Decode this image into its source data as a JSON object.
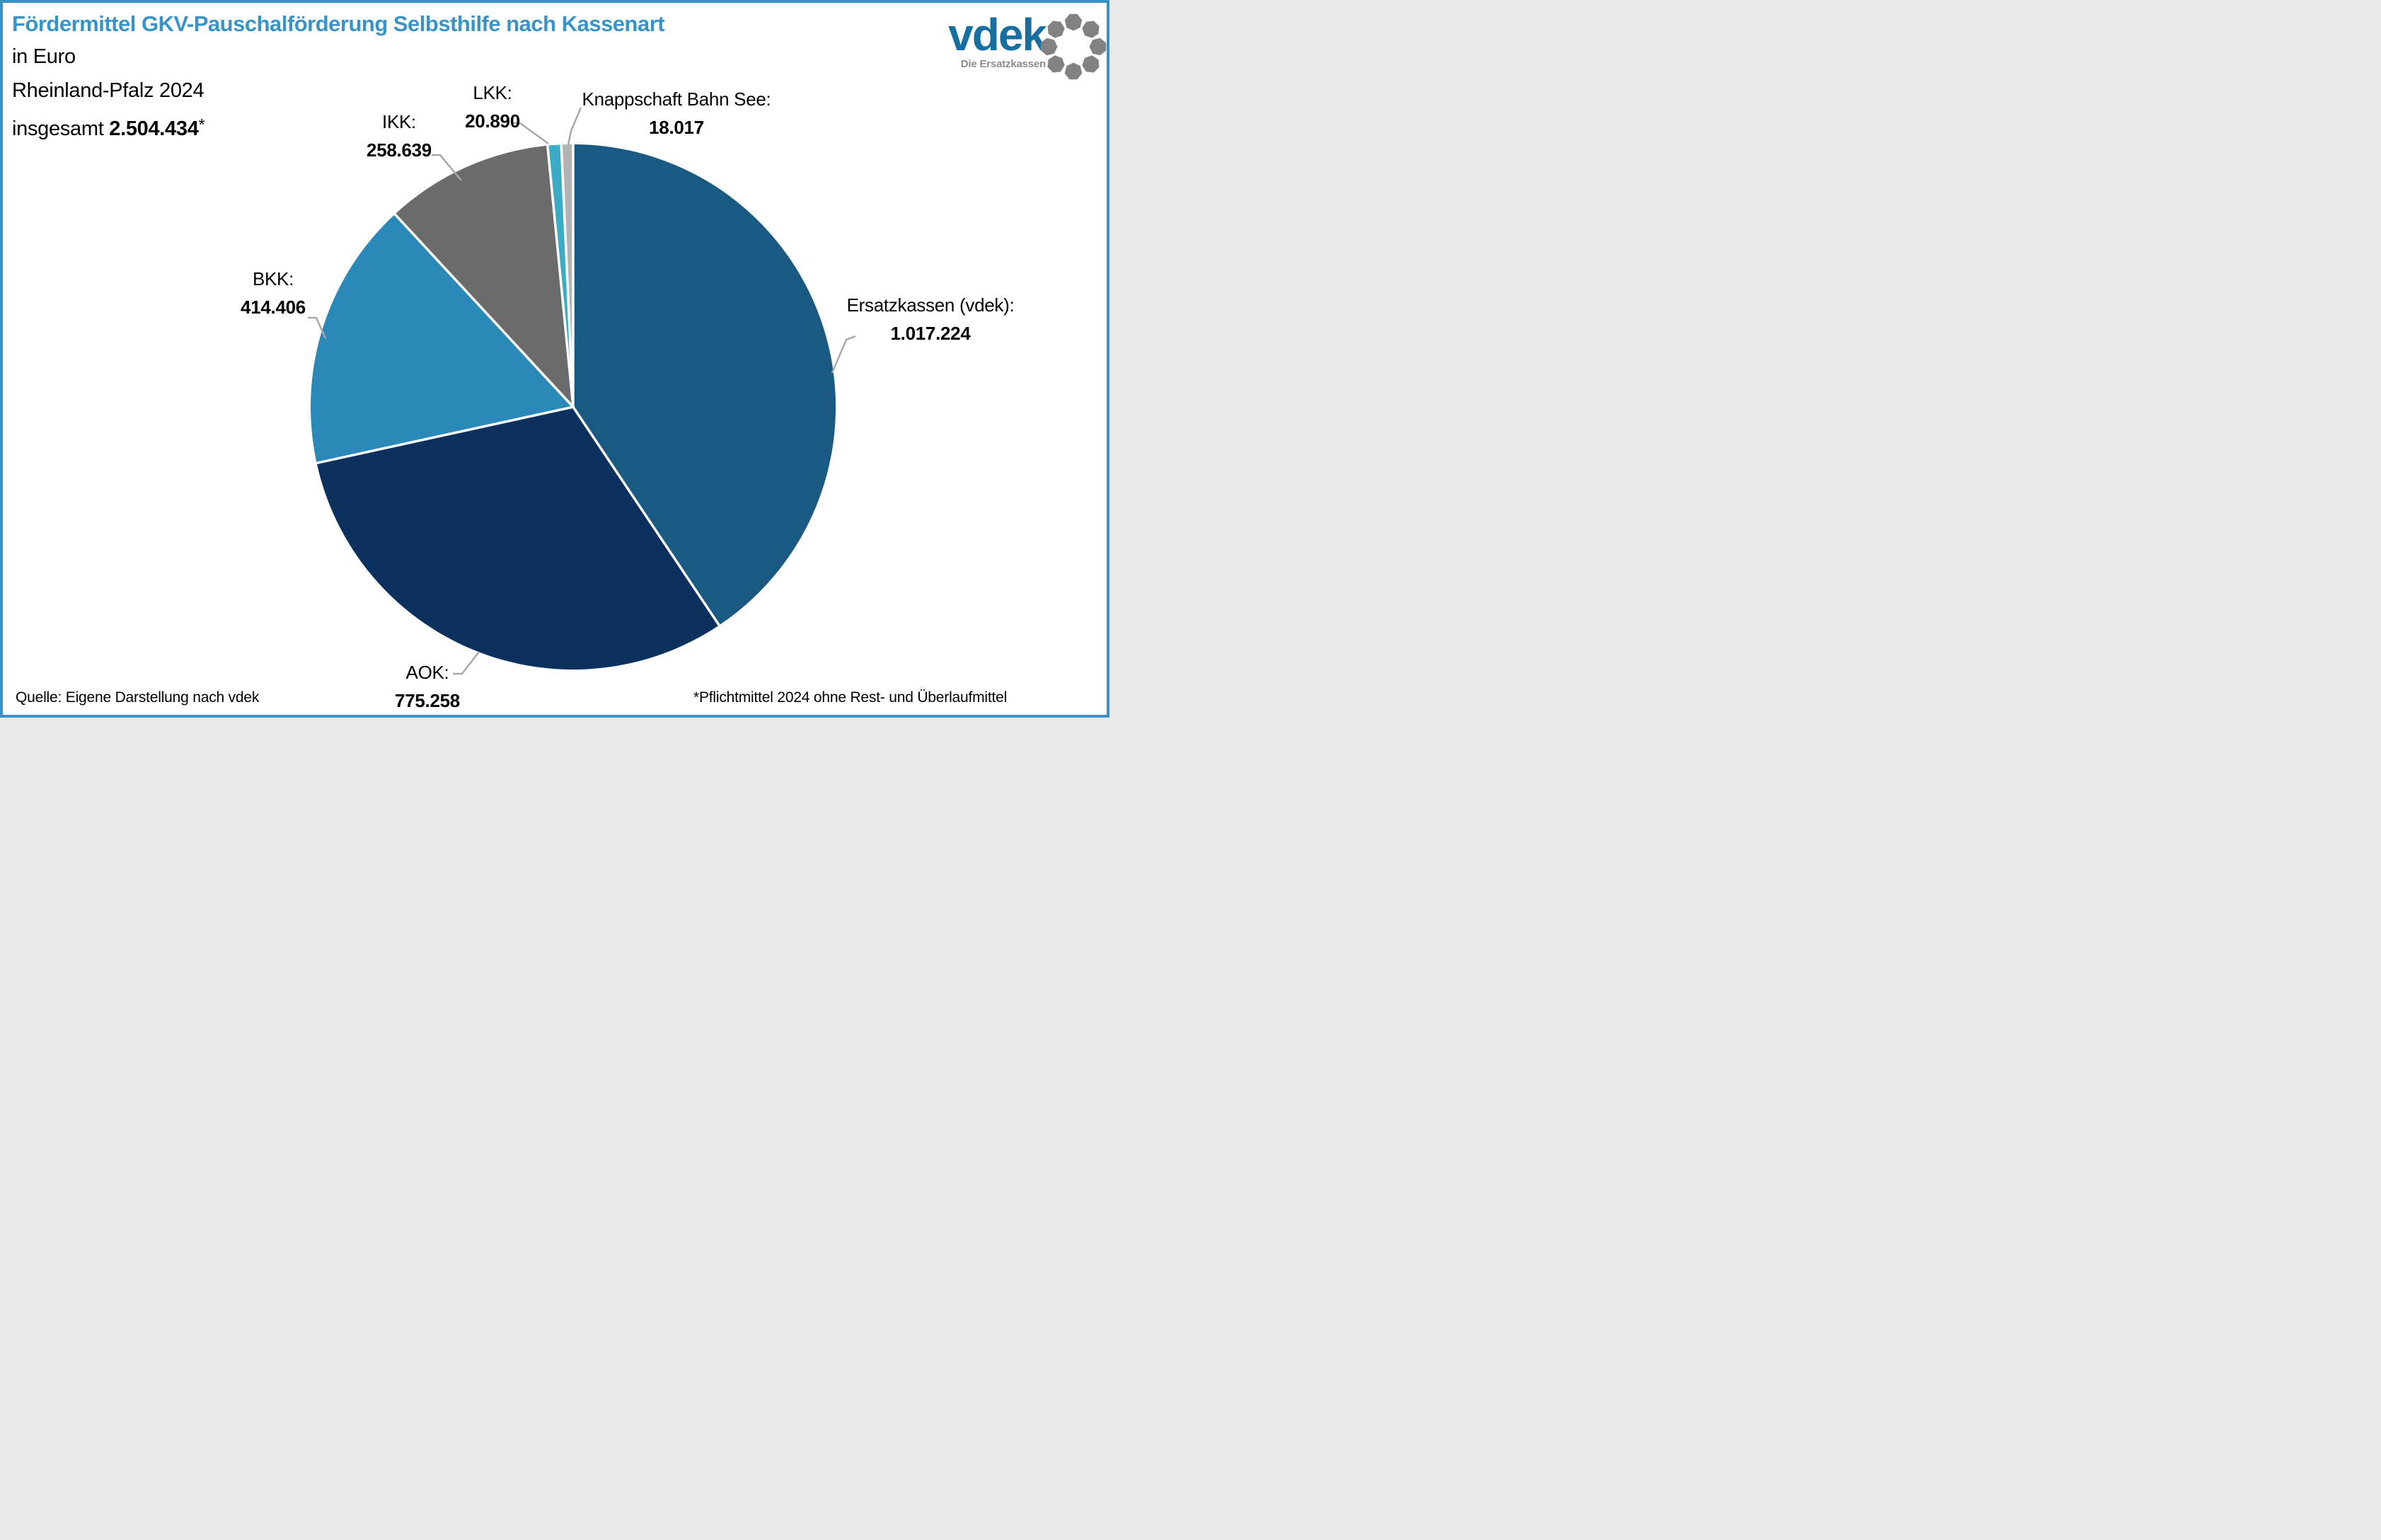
{
  "page": {
    "frame_color": "#3A93C4",
    "background": "#FFFFFF"
  },
  "header": {
    "title": "Fördermittel GKV-Pauschalförderung Selbsthilfe nach Kassenart",
    "title_color": "#3793C8",
    "unit_line": "in Euro",
    "region_line": "Rheinland-Pfalz 2024",
    "total_prefix": "insgesamt ",
    "total_value": "2.504.434",
    "total_suffix": "*"
  },
  "logo": {
    "wordmark": "vdek",
    "tagline": "Die Ersatzkassen",
    "wordmark_color": "#156FA0",
    "tagline_color": "#8C8C8C",
    "ring_color": "#828282",
    "ring_dots": 8
  },
  "chart_data": {
    "type": "pie",
    "title": "Fördermittel GKV-Pauschalförderung Selbsthilfe nach Kassenart",
    "unit": "Euro",
    "region": "Rheinland-Pfalz",
    "year": "2024",
    "total": 2504434,
    "total_display": "2.504.434",
    "start_angle_deg": 0,
    "direction": "clockwise",
    "separator_color": "#FFFFFF",
    "leader_color": "#A8A8A8",
    "slices": [
      {
        "id": "ersatzkassen",
        "label": "Ersatzkassen (vdek):",
        "value": 1017224,
        "display_value": "1.017.224",
        "color": "#1A5A82"
      },
      {
        "id": "aok",
        "label": "AOK:",
        "value": 775258,
        "display_value": "775.258",
        "color": "#0C315E"
      },
      {
        "id": "bkk",
        "label": "BKK:",
        "value": 414406,
        "display_value": "414.406",
        "color": "#2B89B9"
      },
      {
        "id": "ikk",
        "label": "IKK:",
        "value": 258639,
        "display_value": "258.639",
        "color": "#6B6B6B"
      },
      {
        "id": "lkk",
        "label": "LKK:",
        "value": 20890,
        "display_value": "20.890",
        "color": "#3BACC6"
      },
      {
        "id": "knappschaft",
        "label": "Knappschaft Bahn See:",
        "value": 18017,
        "display_value": "18.017",
        "color": "#B3B3B3"
      }
    ]
  },
  "footer": {
    "source": "Quelle: Eigene Darstellung nach vdek",
    "footnote": "*Pflichtmittel 2024 ohne Rest- und Überlaufmittel"
  }
}
